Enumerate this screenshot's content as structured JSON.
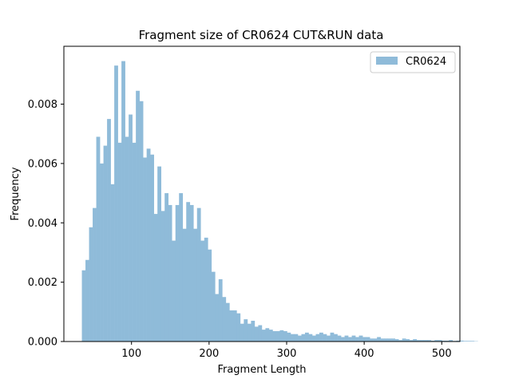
{
  "chart_data": {
    "type": "bar",
    "title": "Fragment size of CR0624 CUT&RUN data",
    "xlabel": "Fragment Length",
    "ylabel": "Frequency",
    "xlim": [
      12.8,
      523.4
    ],
    "ylim": [
      0,
      0.00995
    ],
    "xticks": [
      "100",
      "200",
      "300",
      "400",
      "500"
    ],
    "xtick_values": [
      100,
      200,
      300,
      400,
      500
    ],
    "yticks": [
      "0.000",
      "0.002",
      "0.004",
      "0.006",
      "0.008"
    ],
    "ytick_values": [
      0,
      0.002,
      0.004,
      0.006,
      0.008
    ],
    "legend_position": "top-right",
    "bin_start": 36,
    "bin_width": 4.64,
    "series": [
      {
        "name": "CR0624",
        "color": "#8fbbd9",
        "values": [
          0.0024,
          0.00275,
          0.00385,
          0.0045,
          0.0069,
          0.006,
          0.0066,
          0.0075,
          0.0053,
          0.0093,
          0.0067,
          0.00945,
          0.0069,
          0.00765,
          0.0067,
          0.00845,
          0.0081,
          0.0062,
          0.0065,
          0.0063,
          0.0043,
          0.0059,
          0.0044,
          0.005,
          0.0046,
          0.0034,
          0.0046,
          0.005,
          0.0038,
          0.0047,
          0.0046,
          0.0038,
          0.0045,
          0.0034,
          0.0035,
          0.0031,
          0.00235,
          0.0016,
          0.0021,
          0.0015,
          0.0013,
          0.00105,
          0.00105,
          0.00095,
          0.0006,
          0.00075,
          0.0006,
          0.0007,
          0.0005,
          0.00055,
          0.0004,
          0.00045,
          0.0004,
          0.00035,
          0.00035,
          0.00038,
          0.00035,
          0.0003,
          0.00025,
          0.00025,
          0.0002,
          0.00025,
          0.0003,
          0.00025,
          0.0002,
          0.00025,
          0.0003,
          0.00025,
          0.0002,
          0.0003,
          0.00025,
          0.0002,
          0.00015,
          0.0002,
          0.00015,
          0.0002,
          0.00015,
          0.0002,
          0.00015,
          0.00015,
          0.0001,
          0.0001,
          0.00015,
          0.0001,
          0.0001,
          0.0001,
          0.0001,
          8e-05,
          5e-05,
          0.0001,
          8e-05,
          5e-05,
          8e-05,
          5e-05,
          5e-05,
          5e-05,
          5e-05,
          3e-05,
          5e-05,
          5e-05,
          3e-05,
          3e-05,
          5e-05,
          2e-05,
          3e-05,
          3e-05,
          2e-05,
          2e-05,
          2e-05,
          1e-05
        ]
      }
    ]
  }
}
